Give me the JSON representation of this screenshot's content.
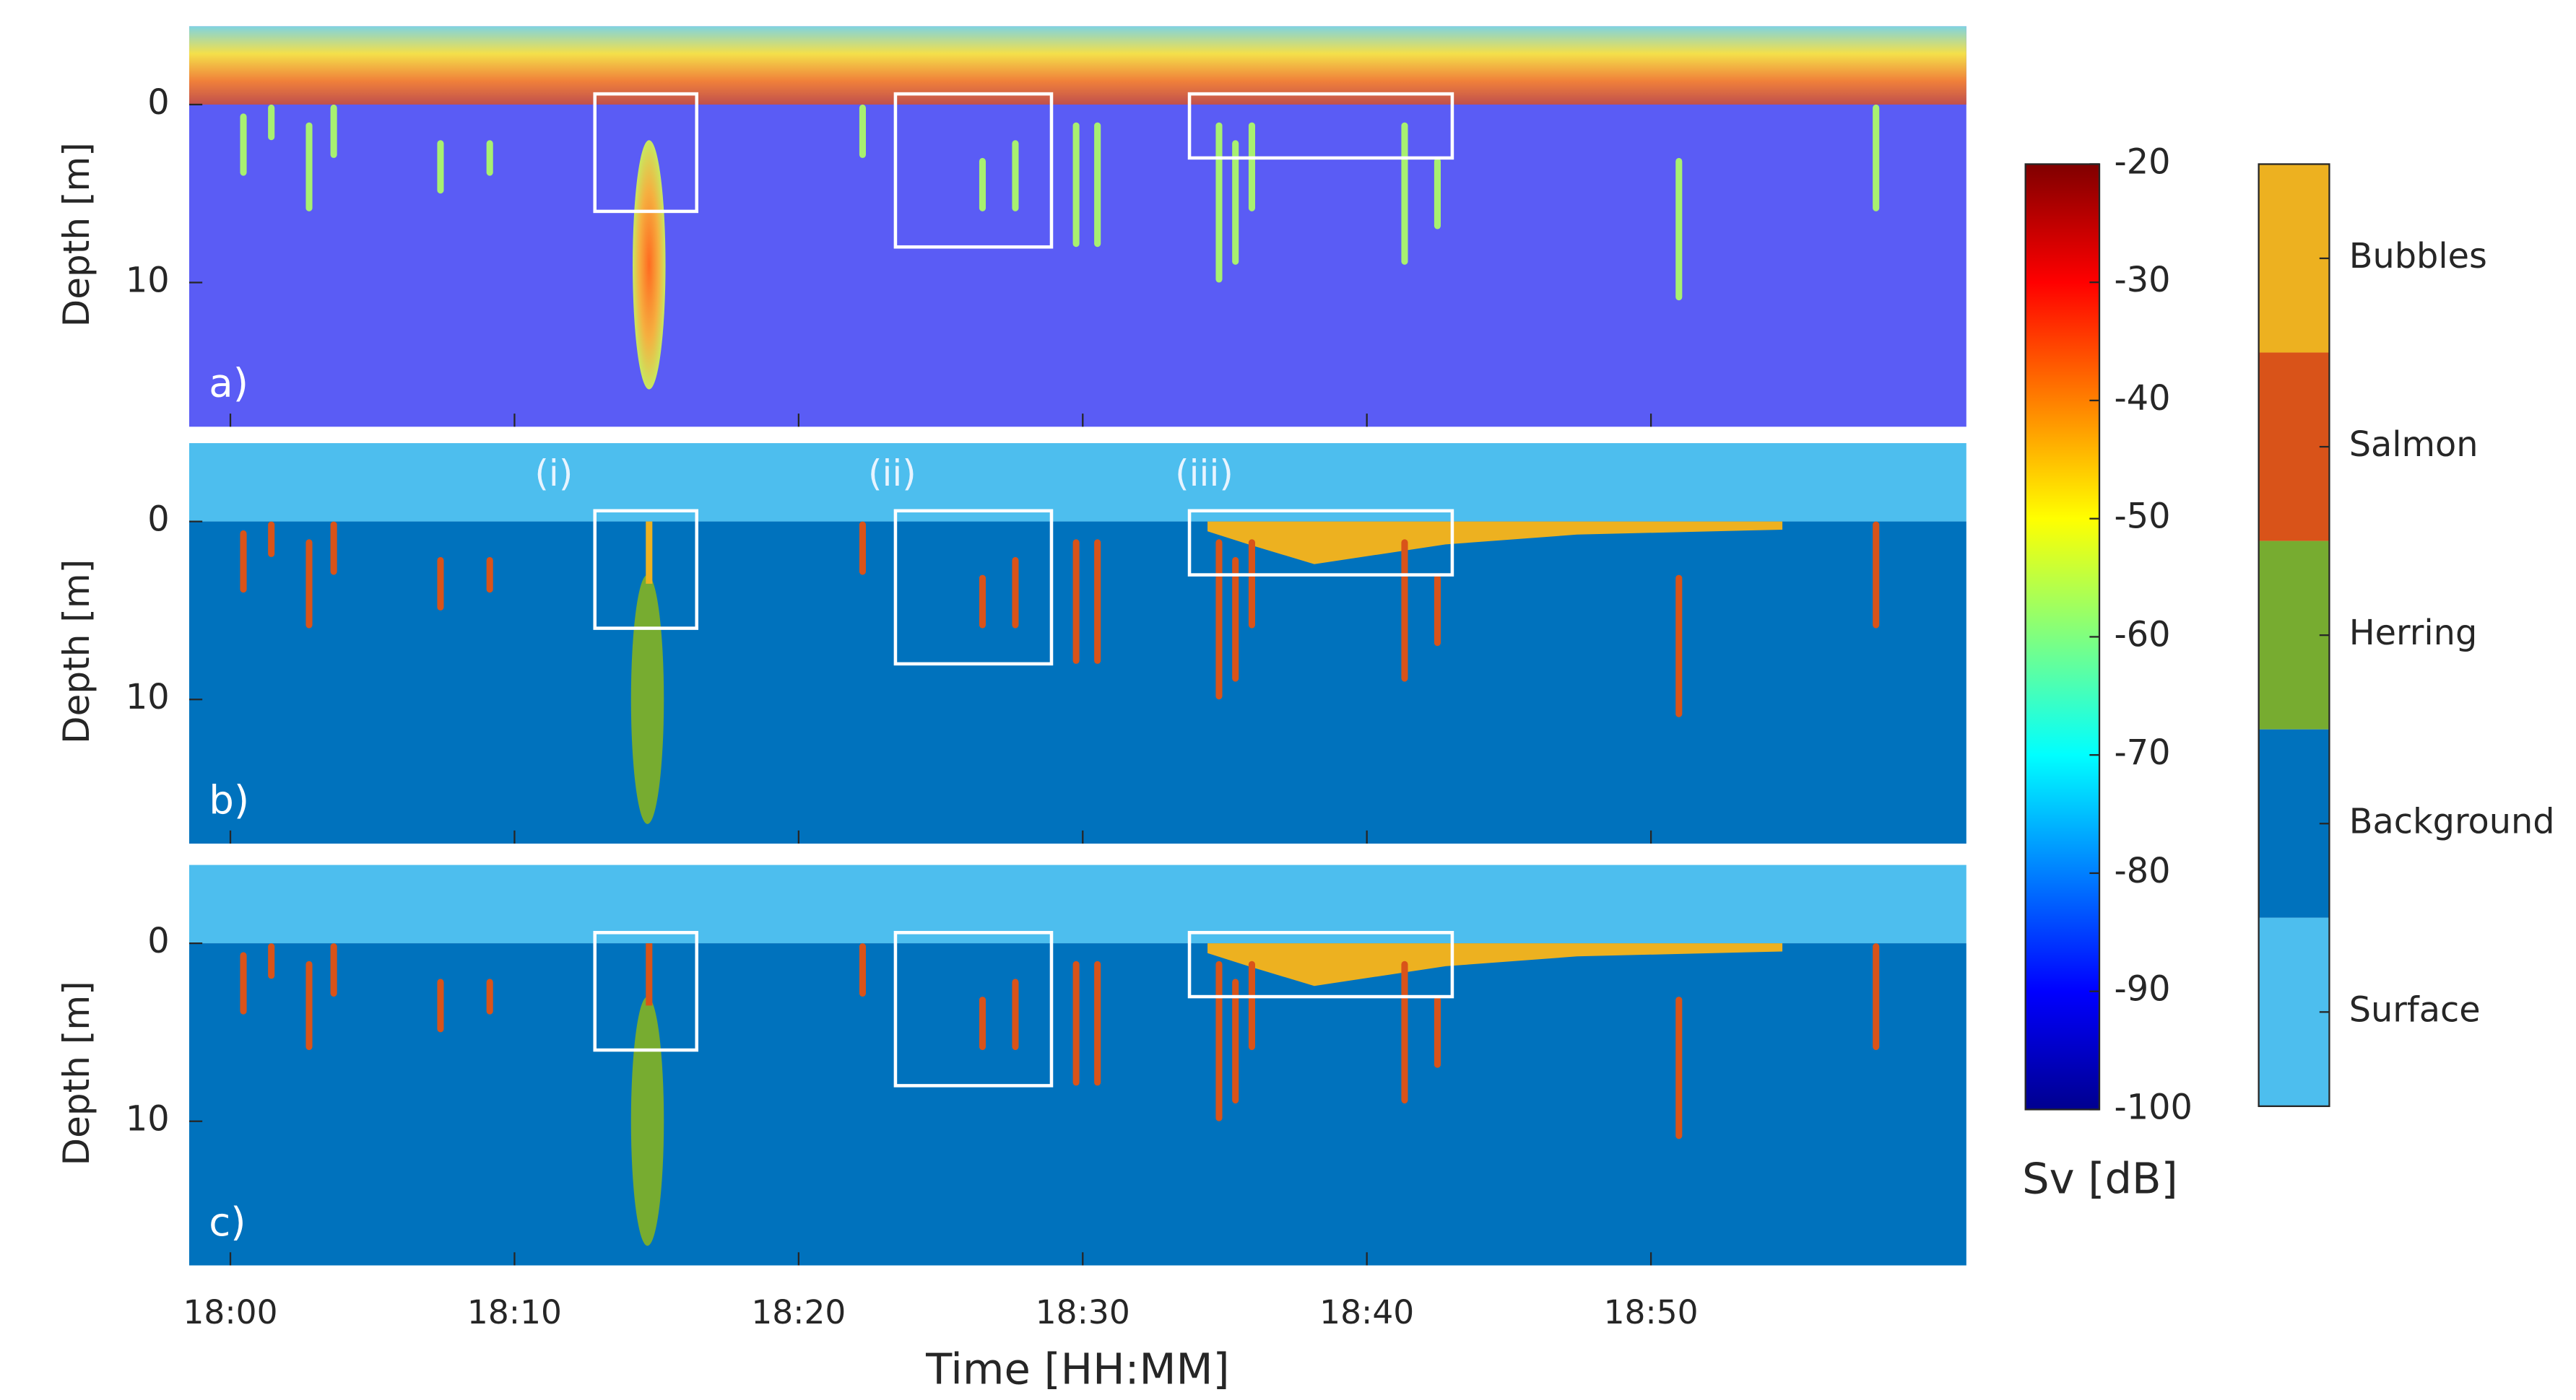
{
  "chart_data": [
    {
      "type": "echogram",
      "panel_label": "a)",
      "ylabel": "Depth [m]",
      "ylim": [
        18.1,
        -4.4
      ],
      "yticks": [
        0,
        10
      ],
      "xlim": [
        -1.45,
        61.1
      ],
      "xticks": [
        {
          "value": 0,
          "label": "18:00"
        },
        {
          "value": 10,
          "label": "18:10"
        },
        {
          "value": 20,
          "label": "18:20"
        },
        {
          "value": 30,
          "label": "18:30"
        },
        {
          "value": 40,
          "label": "18:40"
        },
        {
          "value": 50,
          "label": "18:50"
        }
      ]
    },
    {
      "type": "classes",
      "panel_label": "b)",
      "ylabel": "Depth [m]",
      "ylim": [
        18.1,
        -4.4
      ],
      "yticks": [
        0,
        10
      ],
      "xlim": [
        -1.45,
        61.1
      ],
      "box_labels": [
        "(i)",
        "(ii)",
        "(iii)"
      ],
      "xticks": [
        {
          "value": 0,
          "label": "18:00"
        },
        {
          "value": 10,
          "label": "18:10"
        },
        {
          "value": 20,
          "label": "18:20"
        },
        {
          "value": 30,
          "label": "18:30"
        },
        {
          "value": 40,
          "label": "18:40"
        },
        {
          "value": 50,
          "label": "18:50"
        }
      ]
    },
    {
      "type": "classes",
      "panel_label": "c)",
      "ylabel": "Depth [m]",
      "ylim": [
        18.1,
        -4.4
      ],
      "yticks": [
        0,
        10
      ],
      "xlim": [
        -1.45,
        61.1
      ],
      "xlabel": "Time [HH:MM]",
      "xticks": [
        {
          "value": 0,
          "label": "18:00"
        },
        {
          "value": 10,
          "label": "18:10"
        },
        {
          "value": 20,
          "label": "18:20"
        },
        {
          "value": 30,
          "label": "18:30"
        },
        {
          "value": 40,
          "label": "18:40"
        },
        {
          "value": 50,
          "label": "18:50"
        }
      ]
    }
  ],
  "colorbar": {
    "label": "Sv [dB]",
    "lim": [
      -100,
      -20
    ],
    "ticks": [
      -20,
      -30,
      -40,
      -50,
      -60,
      -70,
      -80,
      -90,
      -100
    ]
  },
  "class_legend": {
    "classes": [
      "Bubbles",
      "Salmon",
      "Herring",
      "Background",
      "Surface"
    ],
    "colors": [
      "#edb120",
      "#d95319",
      "#77ac30",
      "#0072bd",
      "#4dbeee"
    ]
  }
}
